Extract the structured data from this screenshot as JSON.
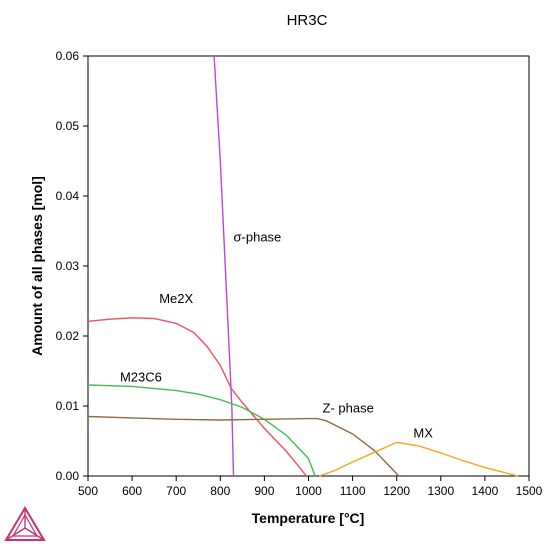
{
  "chart_data": {
    "type": "line",
    "title": "HR3C",
    "xlabel": "Temperature [°C]",
    "ylabel": "Amount of all phases [mol]",
    "xlim": [
      500,
      1500
    ],
    "ylim": [
      0,
      0.06
    ],
    "grid": false,
    "x_ticks": [
      "500",
      "600",
      "700",
      "800",
      "900",
      "1000",
      "1100",
      "1200",
      "1300",
      "1400",
      "1500"
    ],
    "y_ticks": [
      "0.00",
      "0.01",
      "0.02",
      "0.03",
      "0.04",
      "0.05",
      "0.06"
    ],
    "series": [
      {
        "name": "σ-phase",
        "color": "#b44ad6",
        "points": [
          [
            786,
            0.06
          ],
          [
            800,
            0.045
          ],
          [
            815,
            0.025
          ],
          [
            826,
            0.01
          ],
          [
            830,
            0.0
          ]
        ]
      },
      {
        "name": "Me2X",
        "color": "#f05060",
        "points": [
          [
            500,
            0.0221
          ],
          [
            550,
            0.0224
          ],
          [
            600,
            0.0226
          ],
          [
            650,
            0.0225
          ],
          [
            700,
            0.0218
          ],
          [
            740,
            0.0205
          ],
          [
            770,
            0.0185
          ],
          [
            800,
            0.0158
          ],
          [
            825,
            0.0125
          ],
          [
            850,
            0.0105
          ],
          [
            900,
            0.0068
          ],
          [
            950,
            0.0035
          ],
          [
            980,
            0.0012
          ],
          [
            995,
            0.0
          ]
        ]
      },
      {
        "name": "M23C6",
        "color": "#44bb55",
        "points": [
          [
            500,
            0.013
          ],
          [
            600,
            0.0128
          ],
          [
            700,
            0.0122
          ],
          [
            750,
            0.0117
          ],
          [
            800,
            0.0109
          ],
          [
            850,
            0.0098
          ],
          [
            900,
            0.0081
          ],
          [
            950,
            0.0058
          ],
          [
            1000,
            0.0025
          ],
          [
            1015,
            0.0
          ]
        ]
      },
      {
        "name": "Z- phase",
        "color": "#8a7040",
        "points": [
          [
            500,
            0.0085
          ],
          [
            600,
            0.0083
          ],
          [
            700,
            0.0081
          ],
          [
            800,
            0.008
          ],
          [
            900,
            0.0081
          ],
          [
            1000,
            0.0082
          ],
          [
            1020,
            0.0082
          ],
          [
            1040,
            0.0079
          ],
          [
            1100,
            0.006
          ],
          [
            1150,
            0.0036
          ],
          [
            1205,
            0.0
          ]
        ]
      },
      {
        "name": "MX",
        "color": "#f5a623",
        "points": [
          [
            1025,
            0.0
          ],
          [
            1060,
            0.0008
          ],
          [
            1100,
            0.002
          ],
          [
            1150,
            0.0034
          ],
          [
            1200,
            0.0048
          ],
          [
            1250,
            0.0043
          ],
          [
            1300,
            0.0033
          ],
          [
            1350,
            0.0022
          ],
          [
            1400,
            0.0012
          ],
          [
            1450,
            0.0004
          ],
          [
            1475,
            0.0
          ]
        ]
      }
    ]
  }
}
